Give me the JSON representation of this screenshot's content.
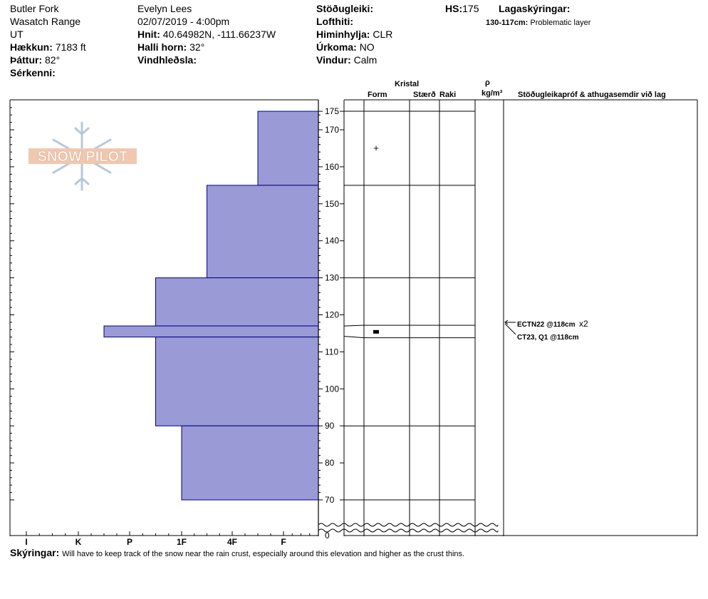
{
  "header": {
    "location": "Butler Fork",
    "range": "Wasatch Range",
    "state": "UT",
    "elevation_label": "Hækkun:",
    "elevation_value": "7183 ft",
    "aspect_label": "Þáttur:",
    "aspect_value": "82°",
    "features_label": "Sérkenni:",
    "observer": "Evelyn Lees",
    "datetime": "02/07/2019 - 4:00pm",
    "coords_label": "Hnit:",
    "coords_value": "40.64982N, -111.66237W",
    "slope_label": "Halli horn:",
    "slope_value": "32°",
    "wind_loading_label": "Vindhleðsla:",
    "stability_label": "Stöðugleiki:",
    "air_temp_label": "Lofthiti:",
    "sky_label": "Himinhylja:",
    "sky_value": "CLR",
    "precip_label": "Úrkoma:",
    "precip_value": "NO",
    "wind_label": "Vindur:",
    "wind_value": "Calm",
    "hs_label": "HS:",
    "hs_value": "175",
    "layer_notes_label": "Lagaskýringar:",
    "layer_note_range": "130-117cm:",
    "layer_note_text": "Problematic layer"
  },
  "columns": {
    "crystal": "Kristal",
    "form": "Form",
    "size": "Stærð",
    "moisture": "Raki",
    "rho": "ρ",
    "density_unit": "kg/m³",
    "stability_tests": "Stöðugleikapróf & athugasemdir við lag"
  },
  "logo": {
    "text": "SNOW PILOT"
  },
  "tests": [
    {
      "text": "ECTN22 @118cm",
      "multiplier": "x2"
    },
    {
      "text": "CT23, Q1 @118cm"
    }
  ],
  "footer": {
    "label": "Skýringar:",
    "text": "Will have to keep track of the snow near the rain crust, especially around this elevation and higher as the crust thins."
  },
  "colors": {
    "hardness_fill": "#9a9ad6",
    "hardness_stroke": "#00008b",
    "logo_orange": "#f0c8b0",
    "logo_blue": "#b8c8d8"
  },
  "chart_data": {
    "type": "bar",
    "orientation": "horizontal",
    "x_axis": {
      "ticks": [
        "I",
        "K",
        "P",
        "1F",
        "4F",
        "F"
      ],
      "reversed": true
    },
    "y_axis": {
      "ticks": [
        70,
        80,
        90,
        100,
        110,
        120,
        130,
        140,
        150,
        160,
        170,
        175
      ],
      "bottom_label": "0",
      "range": [
        65,
        178
      ]
    },
    "layers": [
      {
        "top": 175,
        "bottom": 155,
        "hardness": "F+"
      },
      {
        "top": 155,
        "bottom": 130,
        "hardness": "4F+"
      },
      {
        "top": 130,
        "bottom": 117,
        "hardness": "1F+"
      },
      {
        "top": 117,
        "bottom": 114,
        "hardness": "P+"
      },
      {
        "top": 114,
        "bottom": 90,
        "hardness": "1F+"
      },
      {
        "top": 90,
        "bottom": 70,
        "hardness": "1F"
      }
    ],
    "crystal_form_marks": [
      {
        "height": 165,
        "symbol": "+"
      },
      {
        "height": 115.5,
        "symbol": "■"
      }
    ]
  }
}
